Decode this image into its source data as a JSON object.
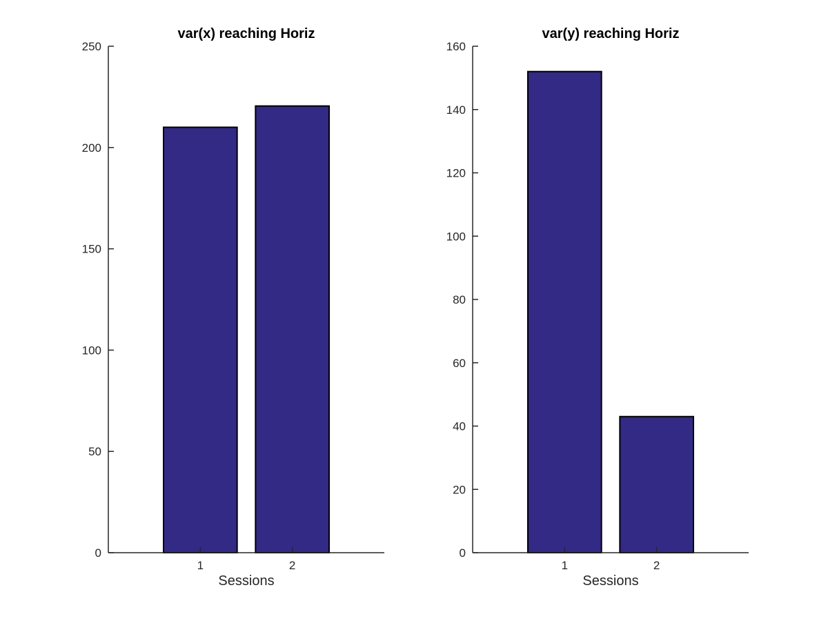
{
  "chart_data": [
    {
      "type": "bar",
      "title": "var(x) reaching Horiz",
      "xlabel": "Sessions",
      "ylabel": "",
      "categories": [
        "1",
        "2"
      ],
      "values": [
        210,
        220.5
      ],
      "ylim": [
        0,
        250
      ],
      "yticks": [
        0,
        50,
        100,
        150,
        200,
        250
      ],
      "grid": false,
      "bar_color": "#332a85"
    },
    {
      "type": "bar",
      "title": "var(y) reaching Horiz",
      "xlabel": "Sessions",
      "ylabel": "",
      "categories": [
        "1",
        "2"
      ],
      "values": [
        152,
        43
      ],
      "ylim": [
        0,
        160
      ],
      "yticks": [
        0,
        20,
        40,
        60,
        80,
        100,
        120,
        140,
        160
      ],
      "grid": false,
      "bar_color": "#332a85"
    }
  ]
}
